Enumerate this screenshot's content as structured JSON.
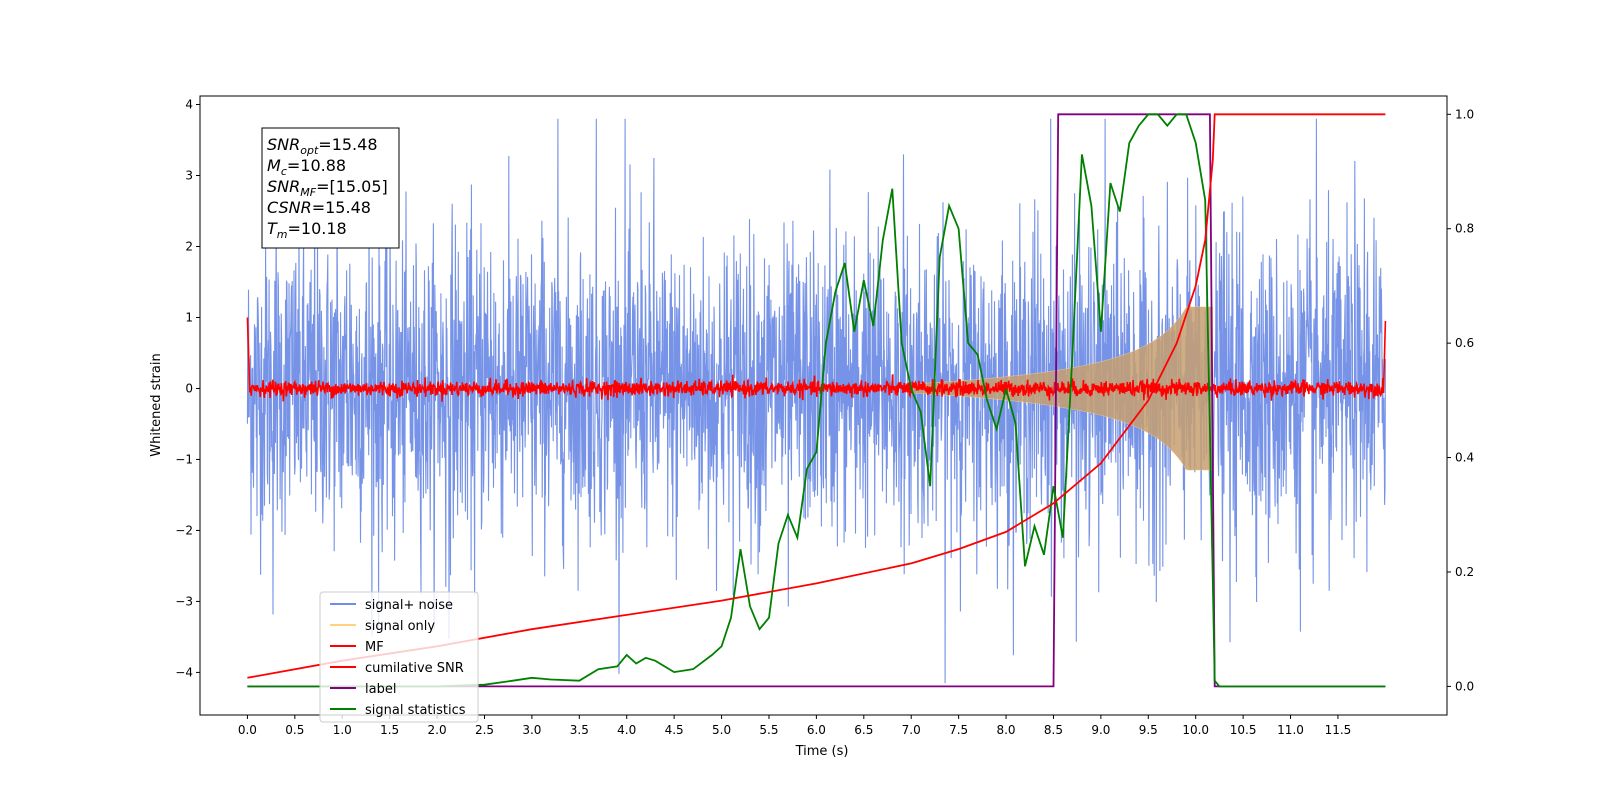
{
  "chart_data": {
    "type": "line",
    "xlabel": "Time (s)",
    "ylabel_left": "Whitened strain",
    "ylabel_right": "",
    "xlim": [
      -0.5,
      12.65
    ],
    "ylim_left": [
      -4.6,
      4.12
    ],
    "ylim_right": [
      -0.05,
      1.032
    ],
    "x_ticks": [
      "0.0",
      "0.5",
      "1.0",
      "1.5",
      "2.0",
      "2.5",
      "3.0",
      "3.5",
      "4.0",
      "4.5",
      "5.0",
      "5.5",
      "6.0",
      "6.5",
      "7.0",
      "7.5",
      "8.0",
      "8.5",
      "9.0",
      "9.5",
      "10.0",
      "10.5",
      "11.0",
      "11.5"
    ],
    "y_left_ticks": [
      "4",
      "3",
      "2",
      "1",
      "0",
      "−1",
      "−2",
      "−3",
      "−4"
    ],
    "y_right_ticks": [
      "1.0",
      "0.8",
      "0.6",
      "0.4",
      "0.2",
      "0.0"
    ],
    "grid": false,
    "legend_position": "lower-left",
    "annotation": {
      "lines": [
        {
          "var": "SNR",
          "sub": "opt",
          "value": "=15.48"
        },
        {
          "var": "M",
          "sub": "c",
          "value": "=10.88"
        },
        {
          "var": "SNR",
          "sub": "MF",
          "value": "=[15.05]"
        },
        {
          "var": "CSNR",
          "sub": "",
          "value": "=15.48"
        },
        {
          "var": "T",
          "sub": "m",
          "value": "=10.18"
        }
      ]
    },
    "series": [
      {
        "name": "signal+ noise",
        "color": "#6f8de6",
        "axis": "left",
        "description": "whitened strain, unit-variance noise spanning roughly -4 to 4 from t=0.0 to t=12.0"
      },
      {
        "name": "signal only",
        "color": "#ffd27f",
        "axis": "left",
        "description": "chirp from ~t=7.0 growing to amplitude ~1.1 and ending at t=10.18"
      },
      {
        "name": "MF",
        "color": "#ff0000",
        "axis": "left",
        "description": "matched-filter output near 0, edge spikes to ~1.0 at t=0 and t=12"
      },
      {
        "name": "cumilative SNR",
        "color": "#ff0000",
        "axis": "right",
        "x": [
          0.0,
          1.0,
          2.0,
          3.0,
          4.0,
          5.0,
          6.0,
          7.0,
          7.5,
          8.0,
          8.5,
          9.0,
          9.5,
          9.8,
          10.0,
          10.1,
          10.18,
          10.2,
          12.0
        ],
        "values": [
          0.015,
          0.045,
          0.07,
          0.1,
          0.125,
          0.15,
          0.18,
          0.215,
          0.24,
          0.27,
          0.32,
          0.39,
          0.5,
          0.6,
          0.7,
          0.78,
          0.92,
          1.0,
          1.0
        ]
      },
      {
        "name": "label",
        "color": "#800080",
        "axis": "right",
        "x": [
          0.0,
          8.5,
          8.55,
          10.15,
          10.2,
          12.0
        ],
        "values": [
          0.0,
          0.0,
          1.0,
          1.0,
          0.0,
          0.0
        ]
      },
      {
        "name": "signal statistics",
        "color": "#008000",
        "axis": "right",
        "x": [
          0.0,
          2.0,
          2.5,
          2.8,
          3.0,
          3.2,
          3.5,
          3.7,
          3.9,
          4.0,
          4.1,
          4.2,
          4.3,
          4.5,
          4.7,
          4.9,
          5.0,
          5.1,
          5.2,
          5.3,
          5.4,
          5.5,
          5.6,
          5.7,
          5.8,
          5.9,
          6.0,
          6.1,
          6.2,
          6.3,
          6.4,
          6.5,
          6.6,
          6.7,
          6.8,
          6.9,
          7.0,
          7.1,
          7.2,
          7.3,
          7.4,
          7.5,
          7.6,
          7.7,
          7.8,
          7.9,
          8.0,
          8.1,
          8.2,
          8.3,
          8.4,
          8.5,
          8.6,
          8.7,
          8.8,
          8.9,
          9.0,
          9.1,
          9.2,
          9.3,
          9.4,
          9.5,
          9.6,
          9.7,
          9.8,
          9.9,
          10.0,
          10.1,
          10.15,
          10.2,
          10.25,
          10.3,
          12.0
        ],
        "values": [
          0.0,
          0.0,
          0.003,
          0.01,
          0.015,
          0.012,
          0.01,
          0.03,
          0.035,
          0.055,
          0.04,
          0.05,
          0.045,
          0.025,
          0.03,
          0.055,
          0.07,
          0.12,
          0.24,
          0.14,
          0.1,
          0.12,
          0.25,
          0.3,
          0.26,
          0.38,
          0.41,
          0.6,
          0.69,
          0.74,
          0.62,
          0.71,
          0.63,
          0.78,
          0.87,
          0.6,
          0.52,
          0.48,
          0.35,
          0.75,
          0.84,
          0.8,
          0.6,
          0.58,
          0.5,
          0.45,
          0.52,
          0.46,
          0.21,
          0.28,
          0.23,
          0.35,
          0.26,
          0.58,
          0.93,
          0.84,
          0.62,
          0.88,
          0.83,
          0.95,
          0.98,
          1.0,
          1.0,
          0.98,
          1.0,
          1.0,
          0.95,
          0.85,
          0.45,
          0.01,
          0.0,
          0.0,
          0.0
        ]
      }
    ]
  }
}
